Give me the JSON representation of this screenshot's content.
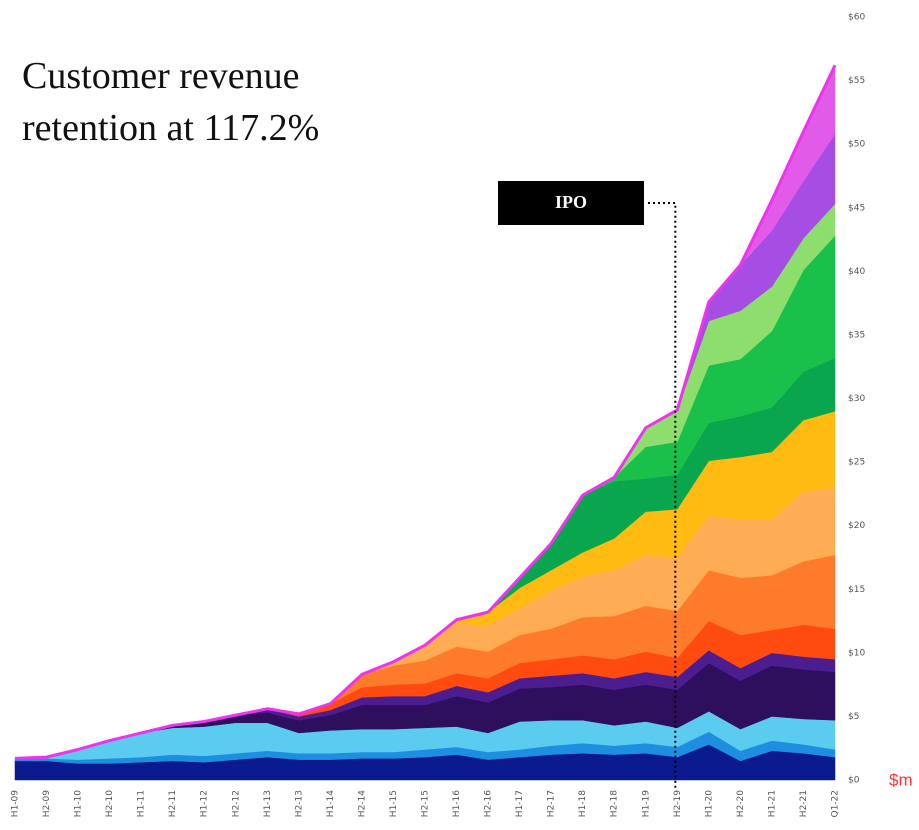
{
  "chart_data": {
    "type": "stacked_area",
    "title": [
      "Customer revenue",
      "retention at 117.2%"
    ],
    "y_unit_label": "$m",
    "annotation": {
      "text": "IPO",
      "at": "H2-19"
    },
    "categories": [
      "H1-09",
      "H2-09",
      "H1-10",
      "H2-10",
      "H1-11",
      "H2-11",
      "H1-12",
      "H2-12",
      "H1-13",
      "H2-13",
      "H1-14",
      "H2-14",
      "H1-15",
      "H2-15",
      "H1-16",
      "H2-16",
      "H1-17",
      "H2-17",
      "H1-18",
      "H2-18",
      "H1-19",
      "H2-19",
      "H1-20",
      "H2-20",
      "H1-21",
      "H2-21",
      "Q1-22"
    ],
    "ylim": [
      0,
      60
    ],
    "yticks": [
      {
        "value": 0,
        "label": "$0"
      },
      {
        "value": 5,
        "label": "$5"
      },
      {
        "value": 10,
        "label": "$10"
      },
      {
        "value": 15,
        "label": "$15"
      },
      {
        "value": 20,
        "label": "$20"
      },
      {
        "value": 25,
        "label": "$25"
      },
      {
        "value": 30,
        "label": "$30"
      },
      {
        "value": 35,
        "label": "$35"
      },
      {
        "value": 40,
        "label": "$40"
      },
      {
        "value": 45,
        "label": "$45"
      },
      {
        "value": 50,
        "label": "$50"
      },
      {
        "value": 55,
        "label": "$55"
      },
      {
        "value": 60,
        "label": "$60"
      }
    ],
    "outline_color": "#ee33ee",
    "series": [
      {
        "color": "#0b1a8e",
        "values": [
          1.5,
          1.5,
          1.3,
          1.3,
          1.4,
          1.5,
          1.4,
          1.6,
          1.8,
          1.6,
          1.6,
          1.7,
          1.7,
          1.8,
          2.0,
          1.6,
          1.8,
          2.0,
          2.1,
          2.0,
          2.1,
          1.8,
          2.8,
          1.5,
          2.3,
          2.1,
          1.8
        ]
      },
      {
        "color": "#1e8fe0",
        "values": [
          0.2,
          0.2,
          0.3,
          0.4,
          0.4,
          0.5,
          0.5,
          0.5,
          0.5,
          0.5,
          0.5,
          0.5,
          0.5,
          0.6,
          0.6,
          0.6,
          0.6,
          0.7,
          0.8,
          0.7,
          0.8,
          0.8,
          1.0,
          0.8,
          0.8,
          0.7,
          0.6
        ]
      },
      {
        "color": "#5ccbf0",
        "values": [
          0,
          0.1,
          0.8,
          1.4,
          1.9,
          2.1,
          2.3,
          2.4,
          2.2,
          1.6,
          1.8,
          1.8,
          1.8,
          1.7,
          1.6,
          1.5,
          2.2,
          2.0,
          1.8,
          1.6,
          1.7,
          1.5,
          1.6,
          1.7,
          1.9,
          2.0,
          2.3
        ]
      },
      {
        "color": "#2d0f5e",
        "values": [
          0,
          0,
          0,
          0,
          0,
          0.2,
          0.4,
          0.6,
          0.8,
          1.0,
          1.2,
          1.9,
          1.9,
          1.8,
          2.4,
          2.4,
          2.6,
          2.6,
          2.8,
          2.8,
          2.9,
          3.0,
          3.8,
          3.8,
          4.0,
          3.9,
          3.8
        ]
      },
      {
        "color": "#4b1d8f",
        "values": [
          0,
          0,
          0,
          0,
          0,
          0,
          0,
          0,
          0.3,
          0.3,
          0.4,
          0.6,
          0.7,
          0.7,
          0.8,
          0.8,
          0.8,
          0.9,
          0.9,
          0.9,
          1.0,
          1.0,
          1.0,
          1.0,
          1.0,
          1.0,
          1.0
        ]
      },
      {
        "color": "#ff4a10",
        "values": [
          0,
          0,
          0,
          0,
          0,
          0,
          0,
          0,
          0,
          0.2,
          0.5,
          0.8,
          0.9,
          1.0,
          1.0,
          1.1,
          1.2,
          1.3,
          1.4,
          1.5,
          1.6,
          1.5,
          2.3,
          2.6,
          1.8,
          2.5,
          2.4
        ]
      },
      {
        "color": "#ff7b2c",
        "values": [
          0,
          0,
          0,
          0,
          0,
          0,
          0,
          0,
          0,
          0,
          0,
          1.0,
          1.5,
          1.8,
          2.1,
          2.1,
          2.2,
          2.4,
          3.0,
          3.4,
          3.6,
          3.7,
          4.0,
          4.5,
          4.3,
          5.0,
          5.8
        ]
      },
      {
        "color": "#ffac55",
        "values": [
          0,
          0,
          0,
          0,
          0,
          0,
          0,
          0,
          0,
          0,
          0,
          0,
          0.3,
          1.2,
          1.8,
          2.1,
          2.1,
          3.0,
          3.2,
          3.6,
          4.0,
          4.2,
          4.3,
          4.6,
          4.4,
          5.5,
          5.3
        ]
      },
      {
        "color": "#ffbb12",
        "values": [
          0,
          0,
          0,
          0,
          0,
          0,
          0,
          0,
          0,
          0,
          0,
          0,
          0,
          0,
          0.3,
          1.0,
          1.6,
          1.6,
          1.9,
          2.5,
          3.4,
          3.8,
          4.3,
          4.9,
          5.3,
          5.6,
          6.0
        ]
      },
      {
        "color": "#0aa64e",
        "values": [
          0,
          0,
          0,
          0,
          0,
          0,
          0,
          0,
          0,
          0,
          0,
          0,
          0,
          0,
          0,
          0,
          0.8,
          2.1,
          4.5,
          4.5,
          2.6,
          2.7,
          3.0,
          3.2,
          3.5,
          3.8,
          4.2
        ]
      },
      {
        "color": "#19c14a",
        "values": [
          0,
          0,
          0,
          0,
          0,
          0,
          0,
          0,
          0,
          0,
          0,
          0,
          0,
          0,
          0,
          0,
          0,
          0,
          0,
          0.3,
          2.5,
          2.6,
          4.5,
          4.5,
          6.0,
          8.0,
          9.6
        ]
      },
      {
        "color": "#8ede6e",
        "values": [
          0,
          0,
          0,
          0,
          0,
          0,
          0,
          0,
          0,
          0,
          0,
          0,
          0,
          0,
          0,
          0,
          0,
          0,
          0,
          0,
          1.5,
          2.5,
          3.5,
          3.8,
          3.5,
          2.5,
          2.5
        ]
      },
      {
        "color": "#a64de3",
        "values": [
          0,
          0,
          0,
          0,
          0,
          0,
          0,
          0,
          0,
          0,
          0,
          0,
          0,
          0,
          0,
          0,
          0,
          0,
          0,
          0,
          0,
          0,
          1.5,
          3.6,
          4.4,
          4.5,
          5.5
        ]
      },
      {
        "color": "#e25be8",
        "values": [
          0,
          0,
          0,
          0,
          0,
          0,
          0,
          0,
          0,
          0,
          0,
          0,
          0,
          0,
          0,
          0,
          0,
          0,
          0,
          0,
          0,
          0,
          0,
          0,
          2.4,
          3.9,
          5.4
        ]
      }
    ]
  }
}
